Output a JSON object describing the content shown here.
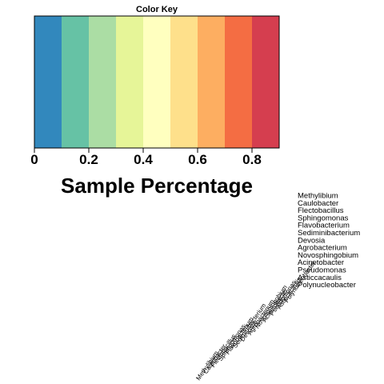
{
  "chart_data": {
    "type": "heatmap",
    "color_key": {
      "title": "Color Key",
      "xlabel": "Sample Percentage",
      "xlim": [
        0,
        0.9
      ],
      "breaks": [
        0,
        0.1,
        0.2,
        0.3,
        0.4,
        0.5,
        0.6,
        0.7,
        0.8,
        0.9
      ],
      "colors": [
        "#3288bd",
        "#66c2a5",
        "#abdda4",
        "#e6f598",
        "#ffffbf",
        "#fee08b",
        "#fdae61",
        "#f46d43",
        "#d53e4f"
      ],
      "ticks": [
        0,
        0.2,
        0.4,
        0.6,
        0.8
      ],
      "tick_labels": [
        "0",
        "0.2",
        "0.4",
        "0.6",
        "0.8"
      ]
    },
    "row_labels": [
      "Methylibium",
      "Caulobacter",
      "Flectobacillus",
      "Sphingomonas",
      "Flavobacterium",
      "Sediminibacterium",
      "Devosia",
      "Agrobacterium",
      "Novosphingobium",
      "Acinetobacter",
      "Pseudomonas",
      "Asticcacaulis",
      "Polynucleobacter"
    ]
  }
}
